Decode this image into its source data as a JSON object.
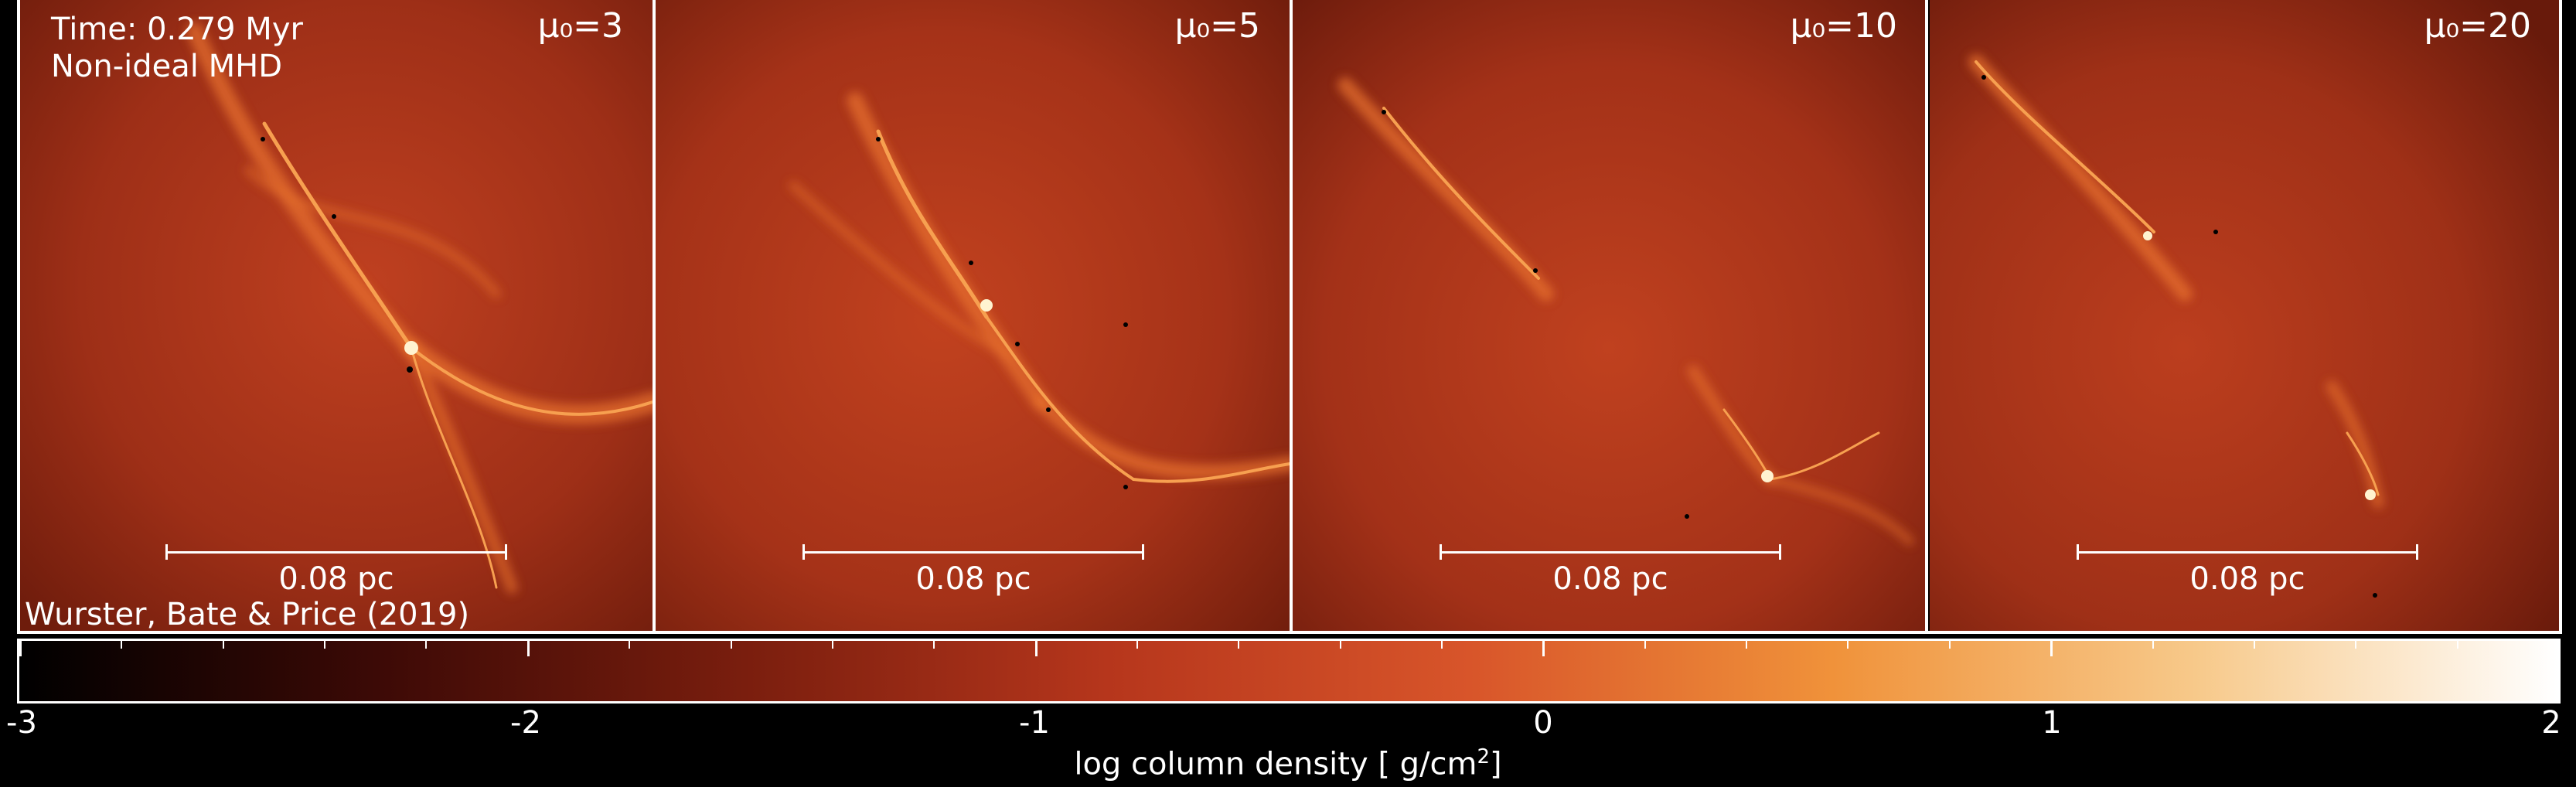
{
  "time_label": "Time: 0.279 Myr",
  "model_label": "Non-ideal MHD",
  "credit": "Wurster, Bate & Price (2019)",
  "panels": [
    {
      "label": "μ₀=3",
      "scale_label": "0.08 pc"
    },
    {
      "label": "μ₀=5",
      "scale_label": "0.08 pc"
    },
    {
      "label": "μ₀=10",
      "scale_label": "0.08 pc"
    },
    {
      "label": "μ₀=20",
      "scale_label": "0.08 pc"
    }
  ],
  "colorbar": {
    "min": -3,
    "max": 2,
    "tick_labels": [
      "-3",
      "-2",
      "-1",
      "0",
      "1",
      "2"
    ],
    "label_text": "log column density [ g/cm",
    "label_sup": "2",
    "label_end": "]",
    "colors": [
      "#000000",
      "#3d0a06",
      "#7a1e0e",
      "#b6361c",
      "#d8552a",
      "#f0923a",
      "#f7c98a",
      "#ffffff"
    ]
  },
  "colors": {
    "background": "#b03a1c",
    "filament": "#f08a3a",
    "core": "#fff3d0"
  }
}
